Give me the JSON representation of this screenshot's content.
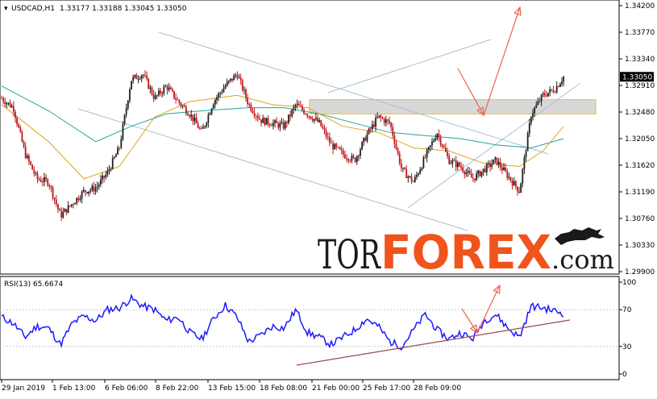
{
  "header": {
    "symbol": "USDCAD,H1",
    "ohlc": "1.33177 1.33188 1.33045 1.33050"
  },
  "current_price": "1.33050",
  "watermark": {
    "part1": "TOR",
    "part2": "FOREX",
    "part3": ".com"
  },
  "colors": {
    "candle_up": "#1f1f1f",
    "candle_down": "#c0171b",
    "ma_fast": "#e0a21a",
    "ma_slow": "#22a59a",
    "channel": "#a9c0cf",
    "zone_fill": "#d8d8d8",
    "zone_border": "#e6b84a",
    "forecast_arrow": "#f0604c",
    "rsi_line": "#1a1aff",
    "rsi_trend": "#9a4a4a",
    "price_tag_bg": "#000000",
    "watermark_dark": "#1a1a1a",
    "watermark_accent": "#f0531c"
  },
  "chart_data": [
    {
      "type": "candlestick",
      "title": "USDCAD,H1",
      "y_ticks": [
        "1.34200",
        "1.33770",
        "1.33340",
        "1.32910",
        "1.32480",
        "1.32050",
        "1.31620",
        "1.31190",
        "1.30760",
        "1.30330",
        "1.29900"
      ],
      "ylim": [
        1.299,
        1.342
      ],
      "x_ticks": [
        "29 Jan 2019",
        "1 Feb 13:00",
        "6 Feb 06:00",
        "8 Feb 22:00",
        "13 Feb 15:00",
        "18 Feb 08:00",
        "21 Feb 00:00",
        "25 Feb 17:00",
        "28 Feb 09:00"
      ],
      "series_close_path": [
        [
          0,
          1.327
        ],
        [
          0.02,
          1.3255
        ],
        [
          0.04,
          1.318
        ],
        [
          0.06,
          1.314
        ],
        [
          0.08,
          1.3135
        ],
        [
          0.1,
          1.308
        ],
        [
          0.12,
          1.31
        ],
        [
          0.14,
          1.312
        ],
        [
          0.16,
          1.3125
        ],
        [
          0.18,
          1.315
        ],
        [
          0.2,
          1.319
        ],
        [
          0.22,
          1.33
        ],
        [
          0.24,
          1.331
        ],
        [
          0.26,
          1.327
        ],
        [
          0.28,
          1.329
        ],
        [
          0.3,
          1.3265
        ],
        [
          0.32,
          1.3245
        ],
        [
          0.34,
          1.3215
        ],
        [
          0.36,
          1.3265
        ],
        [
          0.38,
          1.329
        ],
        [
          0.4,
          1.331
        ],
        [
          0.42,
          1.326
        ],
        [
          0.44,
          1.3235
        ],
        [
          0.46,
          1.323
        ],
        [
          0.48,
          1.3225
        ],
        [
          0.5,
          1.326
        ],
        [
          0.52,
          1.3245
        ],
        [
          0.54,
          1.323
        ],
        [
          0.56,
          1.3195
        ],
        [
          0.58,
          1.318
        ],
        [
          0.6,
          1.317
        ],
        [
          0.62,
          1.321
        ],
        [
          0.64,
          1.324
        ],
        [
          0.66,
          1.323
        ],
        [
          0.68,
          1.3155
        ],
        [
          0.7,
          1.3135
        ],
        [
          0.72,
          1.3175
        ],
        [
          0.74,
          1.3215
        ],
        [
          0.76,
          1.317
        ],
        [
          0.78,
          1.316
        ],
        [
          0.8,
          1.314
        ],
        [
          0.82,
          1.3155
        ],
        [
          0.84,
          1.317
        ],
        [
          0.86,
          1.3145
        ],
        [
          0.88,
          1.312
        ],
        [
          0.9,
          1.3245
        ],
        [
          0.92,
          1.3275
        ],
        [
          0.94,
          1.3285
        ],
        [
          0.955,
          1.3305
        ]
      ],
      "ma_fast_path": [
        [
          0,
          1.326
        ],
        [
          0.08,
          1.32
        ],
        [
          0.14,
          1.314
        ],
        [
          0.2,
          1.316
        ],
        [
          0.26,
          1.324
        ],
        [
          0.32,
          1.3265
        ],
        [
          0.4,
          1.3275
        ],
        [
          0.46,
          1.326
        ],
        [
          0.52,
          1.3255
        ],
        [
          0.58,
          1.3225
        ],
        [
          0.64,
          1.3215
        ],
        [
          0.7,
          1.319
        ],
        [
          0.76,
          1.3185
        ],
        [
          0.82,
          1.3165
        ],
        [
          0.88,
          1.316
        ],
        [
          0.92,
          1.3185
        ],
        [
          0.955,
          1.3225
        ]
      ],
      "ma_slow_path": [
        [
          0,
          1.329
        ],
        [
          0.08,
          1.325
        ],
        [
          0.16,
          1.32
        ],
        [
          0.22,
          1.3225
        ],
        [
          0.28,
          1.3245
        ],
        [
          0.34,
          1.325
        ],
        [
          0.42,
          1.3255
        ],
        [
          0.48,
          1.3255
        ],
        [
          0.54,
          1.3245
        ],
        [
          0.6,
          1.323
        ],
        [
          0.66,
          1.3215
        ],
        [
          0.72,
          1.321
        ],
        [
          0.78,
          1.3205
        ],
        [
          0.84,
          1.3195
        ],
        [
          0.9,
          1.319
        ],
        [
          0.955,
          1.3205
        ]
      ],
      "resistance_zone": [
        1.3245,
        1.3268
      ]
    },
    {
      "type": "line",
      "title": "RSI(13) 65.6674",
      "y_ticks": [
        "100",
        "70",
        "30",
        "0"
      ],
      "ylim": [
        0,
        100
      ],
      "series": [
        {
          "values": [
            [
              0,
              62
            ],
            [
              0.02,
              55
            ],
            [
              0.04,
              40
            ],
            [
              0.06,
              52
            ],
            [
              0.08,
              50
            ],
            [
              0.1,
              32
            ],
            [
              0.12,
              55
            ],
            [
              0.14,
              63
            ],
            [
              0.16,
              58
            ],
            [
              0.18,
              70
            ],
            [
              0.2,
              72
            ],
            [
              0.22,
              82
            ],
            [
              0.24,
              74
            ],
            [
              0.26,
              70
            ],
            [
              0.28,
              58
            ],
            [
              0.3,
              62
            ],
            [
              0.32,
              45
            ],
            [
              0.34,
              38
            ],
            [
              0.36,
              60
            ],
            [
              0.38,
              75
            ],
            [
              0.4,
              62
            ],
            [
              0.42,
              35
            ],
            [
              0.44,
              42
            ],
            [
              0.46,
              52
            ],
            [
              0.48,
              50
            ],
            [
              0.5,
              70
            ],
            [
              0.52,
              45
            ],
            [
              0.54,
              40
            ],
            [
              0.56,
              32
            ],
            [
              0.58,
              40
            ],
            [
              0.6,
              48
            ],
            [
              0.62,
              60
            ],
            [
              0.64,
              52
            ],
            [
              0.66,
              35
            ],
            [
              0.68,
              30
            ],
            [
              0.7,
              48
            ],
            [
              0.72,
              65
            ],
            [
              0.74,
              48
            ],
            [
              0.76,
              38
            ],
            [
              0.78,
              45
            ],
            [
              0.8,
              38
            ],
            [
              0.82,
              58
            ],
            [
              0.84,
              65
            ],
            [
              0.86,
              50
            ],
            [
              0.88,
              40
            ],
            [
              0.9,
              74
            ],
            [
              0.92,
              72
            ],
            [
              0.955,
              66
            ]
          ]
        }
      ]
    }
  ]
}
